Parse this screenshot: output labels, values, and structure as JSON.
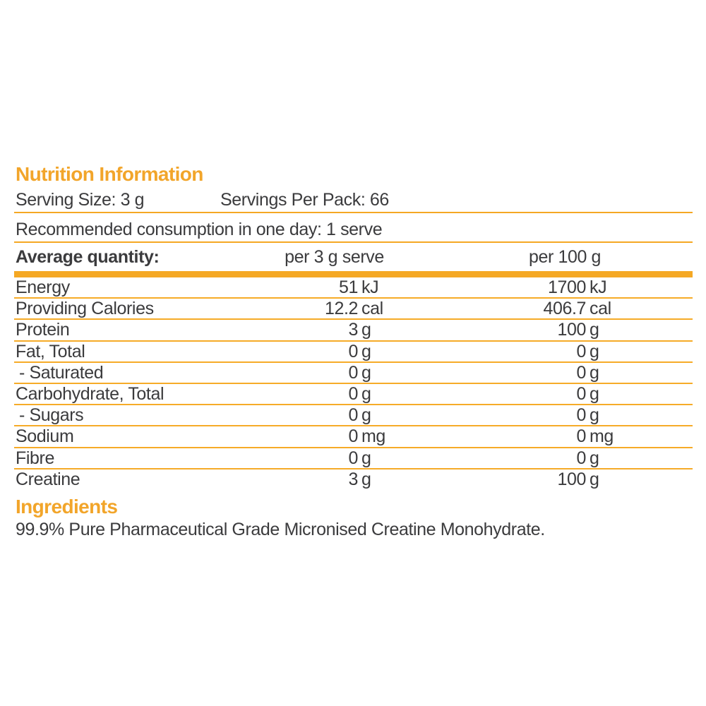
{
  "colors": {
    "accent_orange": "#f2a52a",
    "rule_orange": "#f5a824",
    "text_charcoal": "#3b3b3d",
    "background": "#ffffff"
  },
  "title": "Nutrition Information",
  "serving_info": {
    "serving_size": "Serving Size: 3 g",
    "servings_per_pack": "Servings Per Pack: 66"
  },
  "recommendation": "Recommended consumption in one day: 1 serve",
  "table": {
    "header": {
      "quantity": "Average quantity:",
      "per_serve": "per 3 g serve",
      "per_100g": "per 100 g"
    },
    "rows": [
      {
        "label": "Energy",
        "serve_value": "51",
        "serve_unit": "kJ",
        "per100_value": "1700",
        "per100_unit": "kJ"
      },
      {
        "label": "Providing Calories",
        "serve_value": "12.2",
        "serve_unit": "cal",
        "per100_value": "406.7",
        "per100_unit": "cal"
      },
      {
        "label": "Protein",
        "serve_value": "3",
        "serve_unit": "g",
        "per100_value": "100",
        "per100_unit": "g"
      },
      {
        "label": "Fat, Total",
        "serve_value": "0",
        "serve_unit": "g",
        "per100_value": "0",
        "per100_unit": "g"
      },
      {
        "label": "- Saturated",
        "serve_value": "0",
        "serve_unit": "g",
        "per100_value": "0",
        "per100_unit": "g"
      },
      {
        "label": "Carbohydrate, Total",
        "serve_value": "0",
        "serve_unit": "g",
        "per100_value": "0",
        "per100_unit": "g"
      },
      {
        "label": "- Sugars",
        "serve_value": "0",
        "serve_unit": "g",
        "per100_value": "0",
        "per100_unit": "g"
      },
      {
        "label": "Sodium",
        "serve_value": "0",
        "serve_unit": "mg",
        "per100_value": "0",
        "per100_unit": "mg"
      },
      {
        "label": "Fibre",
        "serve_value": "0",
        "serve_unit": "g",
        "per100_value": "0",
        "per100_unit": "g"
      },
      {
        "label": "Creatine",
        "serve_value": "3",
        "serve_unit": "g",
        "per100_value": "100",
        "per100_unit": "g"
      }
    ]
  },
  "ingredients": {
    "heading": "Ingredients",
    "text": "99.9% Pure Pharmaceutical Grade Micronised Creatine Monohydrate."
  }
}
